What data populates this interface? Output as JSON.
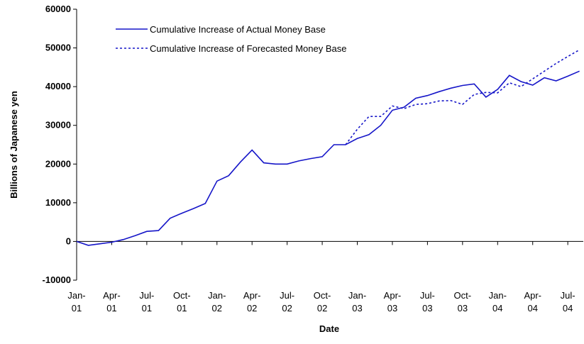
{
  "chart_data": {
    "type": "line",
    "x_label": "Date",
    "y_label": "Billions of Japanese yen",
    "categories": [
      "Jan-01",
      null,
      null,
      "Apr-01",
      null,
      null,
      "Jul-01",
      null,
      null,
      "Oct-01",
      null,
      null,
      "Jan-02",
      null,
      null,
      "Apr-02",
      null,
      null,
      "Jul-02",
      null,
      null,
      "Oct-02",
      null,
      null,
      "Jan-03",
      null,
      null,
      "Apr-03",
      null,
      null,
      "Jul-03",
      null,
      null,
      "Oct-03",
      null,
      null,
      "Jan-04",
      null,
      null,
      "Apr-04",
      null,
      null,
      "Jul-04",
      null
    ],
    "series": [
      {
        "name": "Cumulative Increase of Actual Money Base",
        "color": "#1515c8",
        "dash": "solid",
        "values": [
          0,
          -1000,
          -600,
          -200,
          500,
          1500,
          2600,
          2800,
          6000,
          7300,
          8500,
          9800,
          15600,
          17000,
          20500,
          23600,
          20300,
          20000,
          20000,
          20800,
          21400,
          21900,
          25000,
          25000,
          26600,
          27600,
          30000,
          33900,
          34700,
          37000,
          37700,
          38700,
          39600,
          40300,
          40700,
          37300,
          39300,
          42900,
          41300,
          40400,
          42300,
          41500,
          42700,
          44000
        ]
      },
      {
        "name": "Cumulative Increase of Forecasted Money Base",
        "color": "#1515c8",
        "dash": "dotted",
        "values": [
          null,
          null,
          null,
          null,
          null,
          null,
          null,
          null,
          null,
          null,
          null,
          null,
          null,
          null,
          null,
          null,
          null,
          null,
          null,
          null,
          null,
          null,
          null,
          25000,
          29000,
          32300,
          32300,
          35000,
          34300,
          35400,
          35600,
          36300,
          36400,
          35400,
          38000,
          38500,
          38400,
          41000,
          40000,
          42000,
          44000,
          46000,
          47800,
          49500
        ]
      }
    ],
    "ylim": [
      -10000,
      60000
    ],
    "yticks": [
      -10000,
      0,
      10000,
      20000,
      30000,
      40000,
      50000,
      60000
    ],
    "legend": "top-left"
  }
}
